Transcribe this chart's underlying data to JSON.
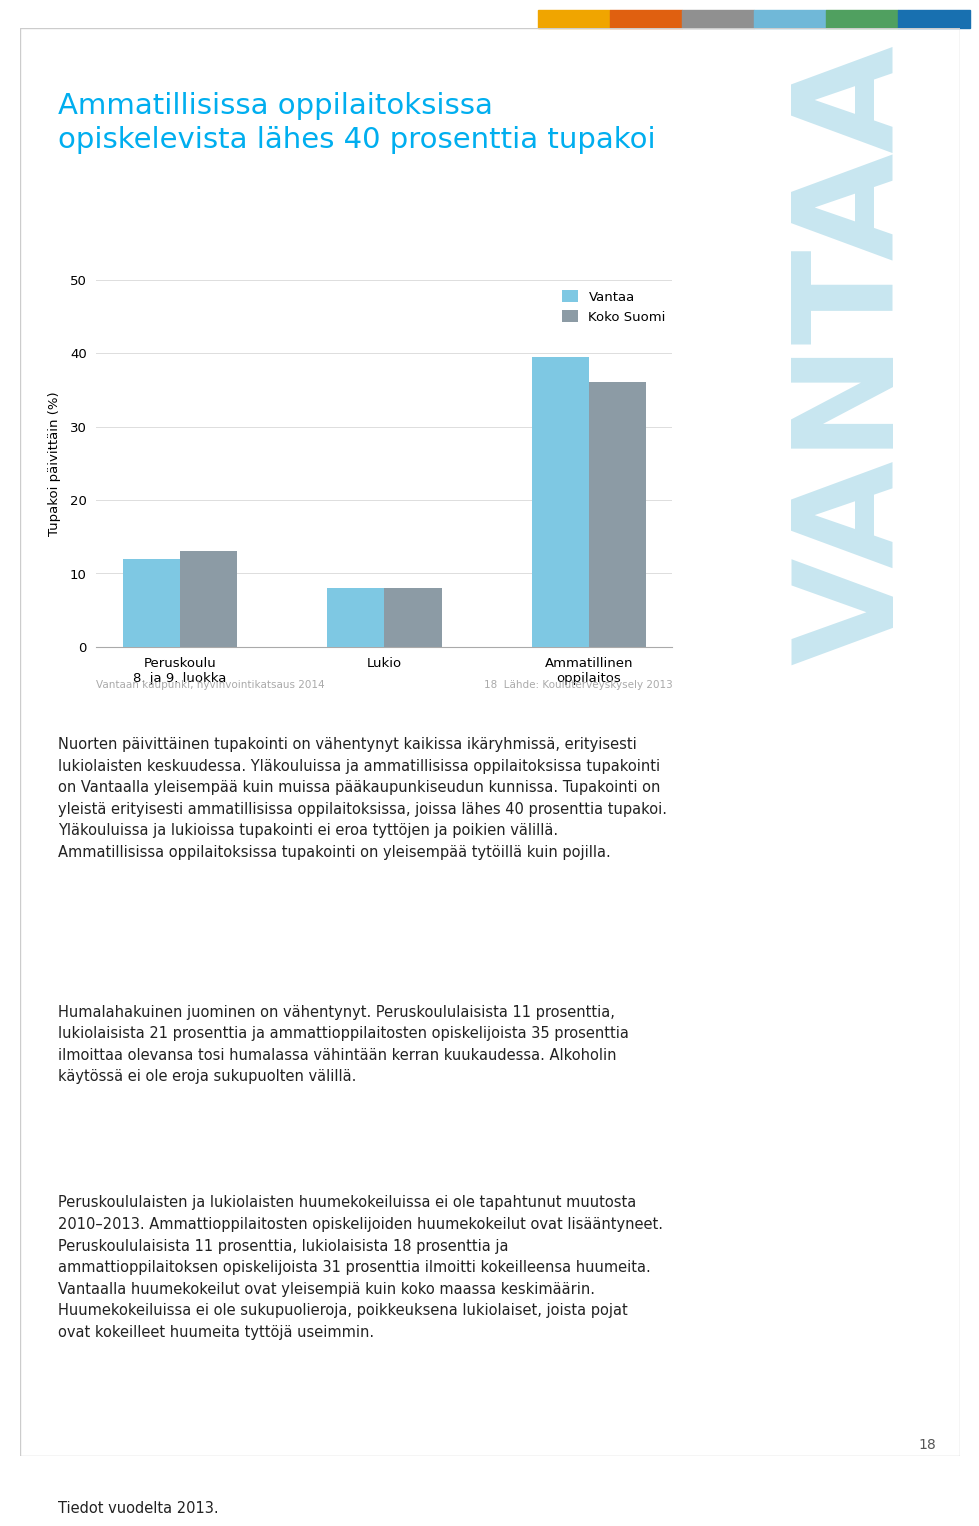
{
  "title_line1": "Ammatillisissa oppilaitoksissa",
  "title_line2": "opiskelevista lähes 40 prosenttia tupakoi",
  "title_color": "#00AEEF",
  "bar_categories": [
    "Peruskoulu\n8. ja 9. luokka",
    "Lukio",
    "Ammatillinen\noppilaitos"
  ],
  "vantaa_values": [
    12,
    8,
    39.5
  ],
  "suomi_values": [
    13,
    8,
    36
  ],
  "vantaa_color": "#7EC8E3",
  "suomi_color": "#8C9BA5",
  "ylabel": "Tupakoi päivittäin (%)",
  "ylim": [
    0,
    50
  ],
  "yticks": [
    0,
    10,
    20,
    30,
    40,
    50
  ],
  "legend_vantaa": "Vantaa",
  "legend_suomi": "Koko Suomi",
  "footnote_left": "Vantaan kaupunki, hyvinvointikatsaus 2014",
  "footnote_right": "18  Lähde: Kouluterveyskysely 2013",
  "watermark_text": "VANTAA",
  "watermark_color": "#C8E6F0",
  "top_bar_colors": [
    "#F0A500",
    "#E06010",
    "#909090",
    "#70B8D8",
    "#50A060",
    "#1870B0"
  ],
  "body_paragraphs": [
    "Nuorten päivittäinen tupakointi on vähentynyt kaikissa ikäryhmissä, erityisesti\nlukiolaisten keskuudessa. Yläkouluissa ja ammatillisissa oppilaitoksissa tupakointi\non Vantaalla yleisempää kuin muissa pääkaupunkiseudun kunnissa. Tupakointi on\nyleistä erityisesti ammatillisissa oppilaitoksissa, joissa lähes 40 prosenttia tupakoi.\nYläkouluissa ja lukioissa tupakointi ei eroa tyttöjen ja poikien välillä.\nAmmatillisissa oppilaitoksissa tupakointi on yleisempää tytöillä kuin pojilla.",
    "Humalahakuinen juominen on vähentynyt. Peruskoululaisista 11 prosenttia,\nlukiolaisista 21 prosenttia ja ammattioppilaitosten opiskelijoista 35 prosenttia\nilmoittaa olevansa tosi humalassa vähintään kerran kuukaudessa. Alkoholin\nkäytössä ei ole eroja sukupuolten välillä.",
    "Peruskoululaisten ja lukiolaisten huumekokeiluissa ei ole tapahtunut muutosta\n2010–2013. Ammattioppilaitosten opiskelijoiden huumekokeilut ovat lisääntyneet.\nPeruskoululaisista 11 prosenttia, lukiolaisista 18 prosenttia ja\nammattioppilaitoksen opiskelijoista 31 prosenttia ilmoitti kokeilleensa huumeita.\nVantaalla huumekokeilut ovat yleisempiä kuin koko maassa keskimäärin.\nHuumekokeiluissa ei ole sukupuolieroja, poikkeuksena lukiolaiset, joista pojat\novat kokeilleet huumeita tyttöjä useimmin.",
    "Tiedot vuodelta 2013."
  ],
  "page_number": "18",
  "background_color": "#FFFFFF",
  "border_color": "#CCCCCC",
  "text_color": "#222222",
  "footnote_color": "#AAAAAA"
}
